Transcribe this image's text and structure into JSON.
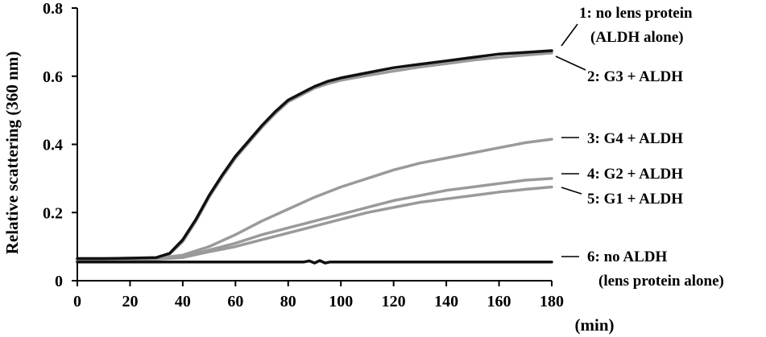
{
  "chart_data": {
    "type": "line",
    "xlabel": "(min)",
    "ylabel": "Relative scattering (360 nm)",
    "xlim": [
      0,
      180
    ],
    "ylim": [
      0,
      0.8
    ],
    "xticks": [
      "0",
      "20",
      "40",
      "60",
      "80",
      "100",
      "120",
      "140",
      "160",
      "180"
    ],
    "yticks": [
      "0",
      "0.2",
      "0.4",
      "0.6",
      "0.8"
    ],
    "grid": false,
    "series": [
      {
        "name": "1: no lens protein (ALDH alone)",
        "label_lines": [
          "1: no lens protein",
          "(ALDH alone)"
        ],
        "color": "#111111",
        "x": [
          0,
          10,
          20,
          30,
          35,
          40,
          45,
          50,
          55,
          60,
          65,
          70,
          75,
          80,
          85,
          90,
          95,
          100,
          110,
          120,
          130,
          140,
          150,
          160,
          170,
          180
        ],
        "y": [
          0.065,
          0.065,
          0.066,
          0.068,
          0.08,
          0.12,
          0.18,
          0.25,
          0.31,
          0.365,
          0.41,
          0.455,
          0.495,
          0.53,
          0.55,
          0.57,
          0.585,
          0.595,
          0.61,
          0.625,
          0.635,
          0.645,
          0.655,
          0.665,
          0.67,
          0.675
        ]
      },
      {
        "name": "2: G3 + ALDH",
        "label_lines": [
          "2: G3 + ALDH"
        ],
        "color": "#9a9a9a",
        "x": [
          0,
          10,
          20,
          30,
          35,
          40,
          45,
          50,
          55,
          60,
          65,
          70,
          75,
          80,
          85,
          90,
          95,
          100,
          110,
          120,
          130,
          140,
          150,
          160,
          170,
          180
        ],
        "y": [
          0.065,
          0.065,
          0.066,
          0.067,
          0.078,
          0.115,
          0.175,
          0.245,
          0.305,
          0.36,
          0.405,
          0.45,
          0.49,
          0.525,
          0.545,
          0.565,
          0.578,
          0.588,
          0.602,
          0.615,
          0.627,
          0.637,
          0.647,
          0.655,
          0.662,
          0.668
        ]
      },
      {
        "name": "3: G4 + ALDH",
        "label_lines": [
          "3: G4 + ALDH"
        ],
        "color": "#9a9a9a",
        "x": [
          0,
          20,
          30,
          40,
          50,
          60,
          70,
          80,
          90,
          100,
          110,
          120,
          130,
          140,
          150,
          160,
          170,
          180
        ],
        "y": [
          0.06,
          0.063,
          0.065,
          0.075,
          0.1,
          0.135,
          0.175,
          0.21,
          0.245,
          0.275,
          0.3,
          0.325,
          0.345,
          0.36,
          0.375,
          0.39,
          0.405,
          0.415
        ]
      },
      {
        "name": "4: G2 + ALDH",
        "label_lines": [
          "4: G2 + ALDH"
        ],
        "color": "#9a9a9a",
        "x": [
          0,
          20,
          30,
          40,
          50,
          60,
          70,
          80,
          90,
          100,
          110,
          120,
          130,
          140,
          150,
          160,
          170,
          180
        ],
        "y": [
          0.06,
          0.062,
          0.064,
          0.07,
          0.09,
          0.11,
          0.135,
          0.155,
          0.175,
          0.195,
          0.215,
          0.235,
          0.25,
          0.265,
          0.275,
          0.285,
          0.295,
          0.3
        ]
      },
      {
        "name": "5: G1 + ALDH",
        "label_lines": [
          "5: G1 + ALDH"
        ],
        "color": "#9a9a9a",
        "x": [
          0,
          20,
          30,
          40,
          50,
          60,
          70,
          80,
          90,
          100,
          110,
          120,
          130,
          140,
          150,
          160,
          170,
          180
        ],
        "y": [
          0.06,
          0.062,
          0.063,
          0.068,
          0.085,
          0.1,
          0.12,
          0.14,
          0.16,
          0.18,
          0.2,
          0.215,
          0.23,
          0.24,
          0.25,
          0.26,
          0.268,
          0.275
        ]
      },
      {
        "name": "6: no ALDH (lens protein alone)",
        "label_lines": [
          "6: no ALDH",
          "(lens protein alone)"
        ],
        "color": "#111111",
        "x": [
          0,
          30,
          60,
          86,
          88,
          90,
          92,
          94,
          96,
          120,
          150,
          180
        ],
        "y": [
          0.055,
          0.055,
          0.055,
          0.055,
          0.058,
          0.052,
          0.059,
          0.052,
          0.055,
          0.055,
          0.055,
          0.055
        ]
      }
    ]
  }
}
